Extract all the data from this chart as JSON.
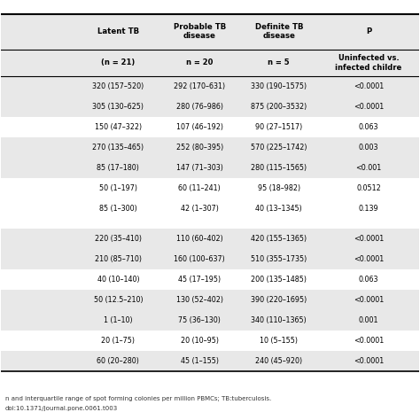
{
  "col_headers": [
    "Latent TB",
    "Probable TB\ndisease",
    "Definite TB\ndisease",
    "P"
  ],
  "col_subheaders": [
    "(n = 21)",
    "n = 20",
    "n = 5",
    "Uninfected vs.\ninfected childre"
  ],
  "rows": [
    [
      "320 (157–520)",
      "292 (170–631)",
      "330 (190–1575)",
      "<0.0001"
    ],
    [
      "305 (130–625)",
      "280 (76–986)",
      "875 (200–3532)",
      "<0.0001"
    ],
    [
      "150 (47–322)",
      "107 (46–192)",
      "90 (27–1517)",
      "0.063"
    ],
    [
      "270 (135–465)",
      "252 (80–395)",
      "570 (225–1742)",
      "0.003"
    ],
    [
      "85 (17–180)",
      "147 (71–303)",
      "280 (115–1565)",
      "<0.001"
    ],
    [
      "50 (1–197)",
      "60 (11–241)",
      "95 (18–982)",
      "0.0512"
    ],
    [
      "85 (1–300)",
      "42 (1–307)",
      "40 (13–1345)",
      "0.139"
    ],
    [
      "220 (35–410)",
      "110 (60–402)",
      "420 (155–1365)",
      "<0.0001"
    ],
    [
      "210 (85–710)",
      "160 (100–637)",
      "510 (355–1735)",
      "<0.0001"
    ],
    [
      "40 (10–140)",
      "45 (17–195)",
      "200 (135–1485)",
      "0.063"
    ],
    [
      "50 (12.5–210)",
      "130 (52–402)",
      "390 (220–1695)",
      "<0.0001"
    ],
    [
      "1 (1–10)",
      "75 (36–130)",
      "340 (110–1365)",
      "0.001"
    ],
    [
      "20 (1–75)",
      "20 (10–95)",
      "10 (5–155)",
      "<0.0001"
    ],
    [
      "60 (20–280)",
      "45 (1–155)",
      "240 (45–920)",
      "<0.0001"
    ]
  ],
  "shaded_rows": [
    0,
    1,
    3,
    4,
    7,
    8,
    10,
    11,
    13
  ],
  "group_gap_after": [
    6
  ],
  "footnote": "n and interquartile range of spot forming colonies per million PBMCs; TB:tuberculosis.\ndoi:10.1371/journal.pone.0061.t003",
  "bg_color": "#ffffff",
  "shade_color": "#e8e8e8",
  "header_shade": "#d0d0d0",
  "text_color": "#000000",
  "header_color": "#000000"
}
